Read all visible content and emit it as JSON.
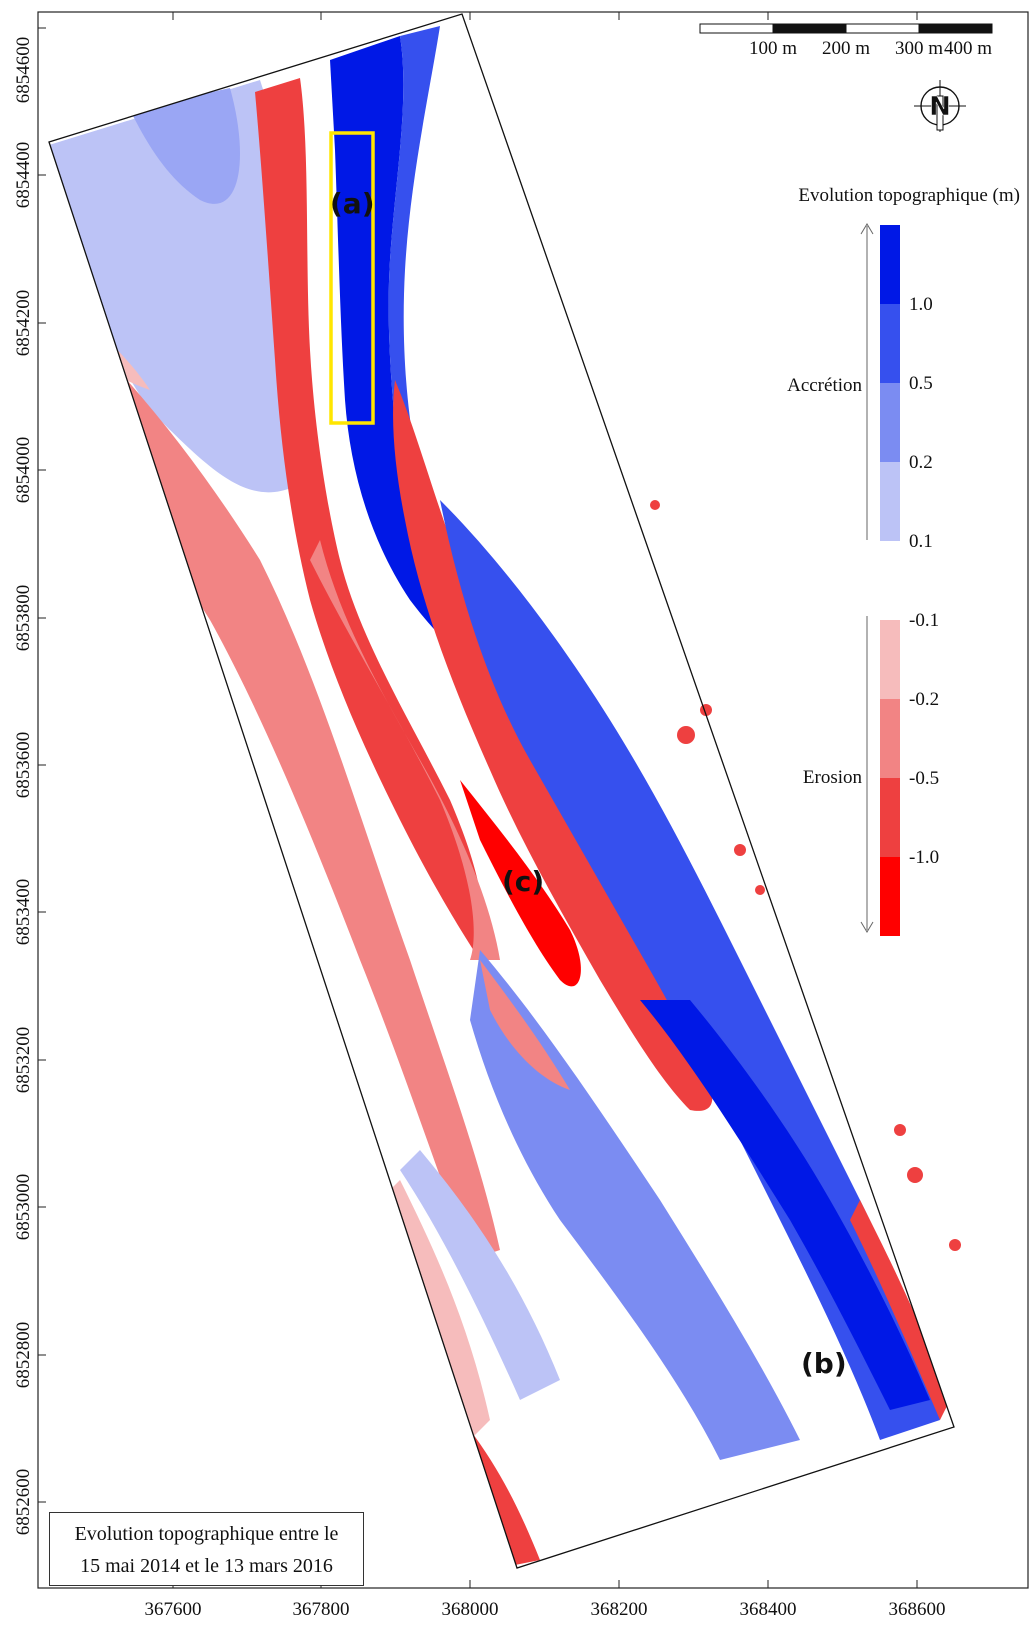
{
  "map": {
    "x_ticks": [
      "367600",
      "367800",
      "368000",
      "368200",
      "368400",
      "368600"
    ],
    "y_ticks": [
      "6852600",
      "6852800",
      "6853000",
      "6853200",
      "6853400",
      "6853600",
      "6853800",
      "6854000",
      "6854200",
      "6854400",
      "6854600"
    ],
    "annotations": {
      "a": "(a)",
      "b": "(b)",
      "c": "(c)"
    },
    "highlight_color": "#ffe600"
  },
  "scale_bar": {
    "labels": [
      "100 m",
      "200 m",
      "300 m",
      "400 m"
    ]
  },
  "north_arrow": {
    "label": "N"
  },
  "legend": {
    "title": "Evolution topographique (m)",
    "accretion_label": "Accrétion",
    "erosion_label": "Erosion",
    "breaks": [
      "1.0",
      "0.5",
      "0.2",
      "0.1",
      "-0.1",
      "-0.2",
      "-0.5",
      "-1.0"
    ],
    "colors": [
      "#0018e6",
      "#3650ee",
      "#7b8cf2",
      "#bcc3f6",
      "#ffffff",
      "#f6bcbc",
      "#f28484",
      "#ee4040",
      "#ff0000"
    ]
  },
  "caption": {
    "line1": "Evolution topographique entre le",
    "line2": "15 mai 2014 et le 13 mars 2016"
  }
}
